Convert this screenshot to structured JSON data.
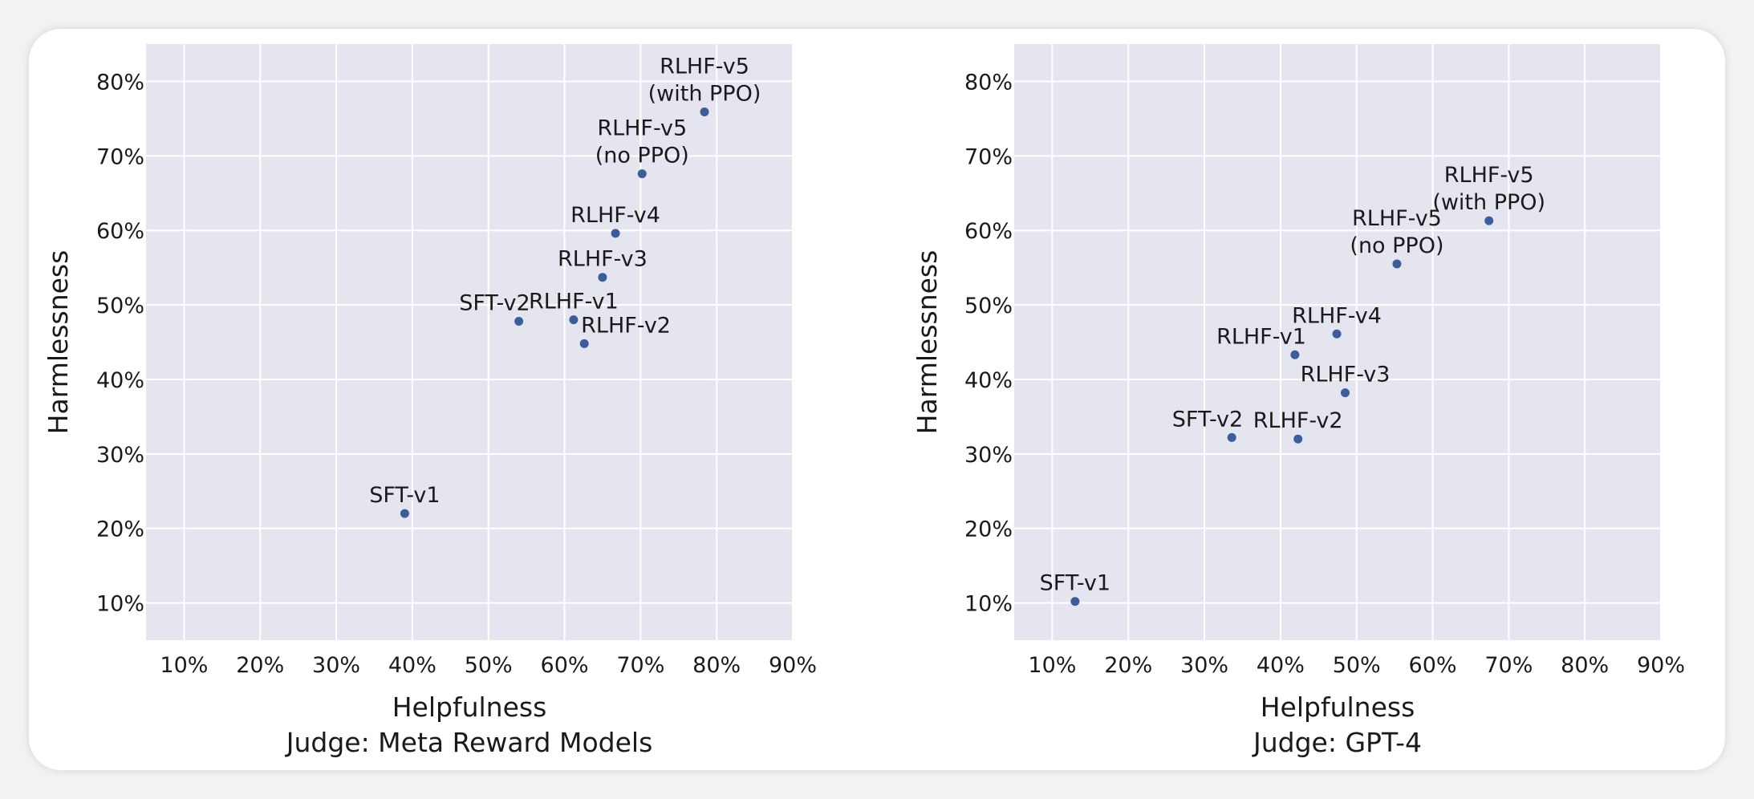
{
  "colors": {
    "panel_background": "#e5e5ef",
    "grid": "#ffffff",
    "marker": "#3b5d9c",
    "card": "#ffffff",
    "page": "#f2f2f2"
  },
  "chart_data": [
    {
      "type": "scatter",
      "title": "",
      "xlabel": "Helpfulness",
      "xlabel2": "Judge: Meta Reward Models",
      "ylabel": "Harmlessness",
      "xlim": [
        5,
        90
      ],
      "ylim": [
        5,
        85
      ],
      "xticks": [
        10,
        20,
        30,
        40,
        50,
        60,
        70,
        80,
        90
      ],
      "yticks": [
        10,
        20,
        30,
        40,
        50,
        60,
        70,
        80
      ],
      "xtick_labels": [
        "10%",
        "20%",
        "30%",
        "40%",
        "50%",
        "60%",
        "70%",
        "80%",
        "90%"
      ],
      "ytick_labels": [
        "10%",
        "20%",
        "30%",
        "40%",
        "50%",
        "60%",
        "70%",
        "80%"
      ],
      "grid": true,
      "points": [
        {
          "label": [
            "SFT-v1"
          ],
          "x": 39.0,
          "y": 22.0,
          "placement": "above"
        },
        {
          "label": [
            "SFT-v2"
          ],
          "x": 54.0,
          "y": 47.8,
          "placement": "above-left"
        },
        {
          "label": [
            "RLHF-v1"
          ],
          "x": 61.2,
          "y": 48.0,
          "placement": "above"
        },
        {
          "label": [
            "RLHF-v2"
          ],
          "x": 62.6,
          "y": 44.8,
          "placement": "above-right"
        },
        {
          "label": [
            "RLHF-v3"
          ],
          "x": 65.0,
          "y": 53.7,
          "placement": "above"
        },
        {
          "label": [
            "RLHF-v4"
          ],
          "x": 66.7,
          "y": 59.6,
          "placement": "above"
        },
        {
          "label": [
            "RLHF-v5",
            "(no PPO)"
          ],
          "x": 70.2,
          "y": 67.6,
          "placement": "above"
        },
        {
          "label": [
            "RLHF-v5",
            "(with PPO)"
          ],
          "x": 78.4,
          "y": 75.9,
          "placement": "above"
        }
      ]
    },
    {
      "type": "scatter",
      "title": "",
      "xlabel": "Helpfulness",
      "xlabel2": "Judge: GPT-4",
      "ylabel": "Harmlessness",
      "xlim": [
        5,
        90
      ],
      "ylim": [
        5,
        85
      ],
      "xticks": [
        10,
        20,
        30,
        40,
        50,
        60,
        70,
        80,
        90
      ],
      "yticks": [
        10,
        20,
        30,
        40,
        50,
        60,
        70,
        80
      ],
      "xtick_labels": [
        "10%",
        "20%",
        "30%",
        "40%",
        "50%",
        "60%",
        "70%",
        "80%",
        "90%"
      ],
      "ytick_labels": [
        "10%",
        "20%",
        "30%",
        "40%",
        "50%",
        "60%",
        "70%",
        "80%"
      ],
      "grid": true,
      "points": [
        {
          "label": [
            "SFT-v1"
          ],
          "x": 13.0,
          "y": 10.2,
          "placement": "above"
        },
        {
          "label": [
            "SFT-v2"
          ],
          "x": 33.6,
          "y": 32.2,
          "placement": "above-left"
        },
        {
          "label": [
            "RLHF-v1"
          ],
          "x": 41.9,
          "y": 43.3,
          "placement": "above-left"
        },
        {
          "label": [
            "RLHF-v2"
          ],
          "x": 42.3,
          "y": 32.0,
          "placement": "above"
        },
        {
          "label": [
            "RLHF-v3"
          ],
          "x": 48.5,
          "y": 38.2,
          "placement": "above"
        },
        {
          "label": [
            "RLHF-v4"
          ],
          "x": 47.4,
          "y": 46.1,
          "placement": "above"
        },
        {
          "label": [
            "RLHF-v5",
            "(no PPO)"
          ],
          "x": 55.3,
          "y": 55.5,
          "placement": "above"
        },
        {
          "label": [
            "RLHF-v5",
            "(with PPO)"
          ],
          "x": 67.4,
          "y": 61.3,
          "placement": "above"
        }
      ]
    }
  ]
}
